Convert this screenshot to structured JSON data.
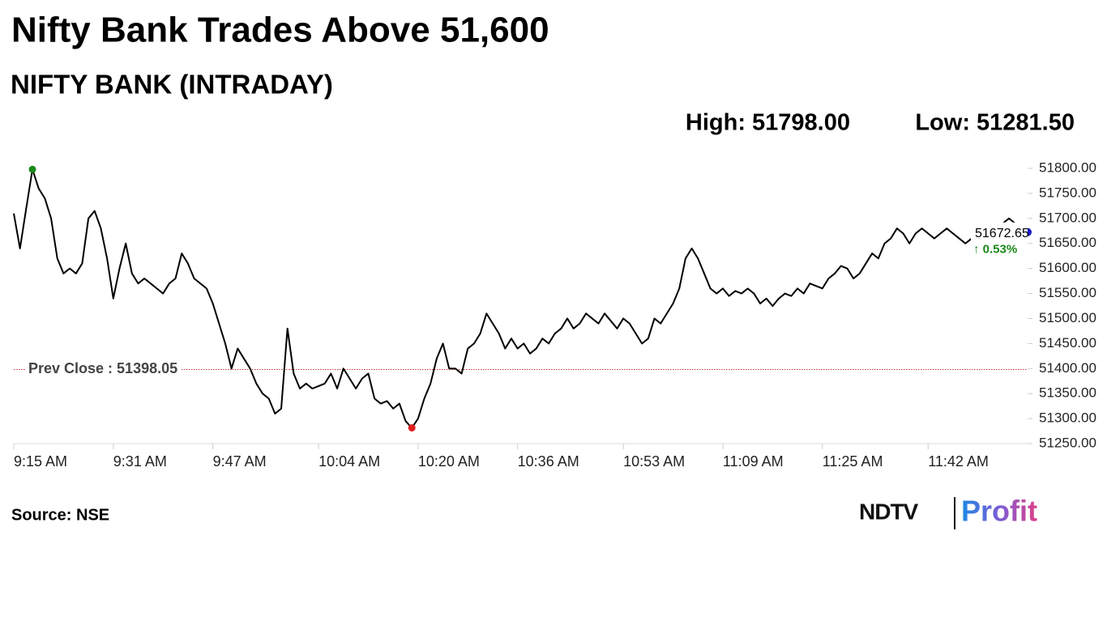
{
  "chart_data": {
    "type": "line",
    "title": "Nifty Bank Trades Above 51,600",
    "subtitle": "NIFTY BANK (INTRADAY)",
    "high_text": "High: 51798.00",
    "low_text": "Low: 51281.50",
    "prev_close": {
      "value": 51398.05,
      "label": "Prev Close : 51398.05"
    },
    "last_price": "51672.65",
    "last_change": "↑ 0.53%",
    "source": "Source: NSE",
    "brand": "NDTV",
    "brand_product": "Profit",
    "high_color": "#1a8a1a",
    "low_color": "#e02020",
    "last_color": "#1a1acc",
    "categories": [
      "9:15 AM",
      null,
      null,
      null,
      null,
      null,
      null,
      null,
      null,
      null,
      null,
      null,
      null,
      null,
      null,
      null,
      "9:31 AM",
      null,
      null,
      null,
      null,
      null,
      null,
      null,
      null,
      null,
      null,
      null,
      null,
      null,
      null,
      null,
      "9:47 AM",
      null,
      null,
      null,
      null,
      null,
      null,
      null,
      null,
      null,
      null,
      null,
      null,
      null,
      null,
      null,
      null,
      "10:04 AM",
      null,
      null,
      null,
      null,
      null,
      null,
      null,
      null,
      null,
      null,
      null,
      null,
      null,
      null,
      null,
      "10:20 AM",
      null,
      null,
      null,
      null,
      null,
      null,
      null,
      null,
      null,
      null,
      null,
      null,
      null,
      null,
      null,
      "10:36 AM",
      null,
      null,
      null,
      null,
      null,
      null,
      null,
      null,
      null,
      null,
      null,
      null,
      null,
      null,
      null,
      null,
      "10:53 AM",
      null,
      null,
      null,
      null,
      null,
      null,
      null,
      null,
      null,
      null,
      null,
      null,
      null,
      null,
      null,
      "11:09 AM",
      null,
      null,
      null,
      null,
      null,
      null,
      null,
      null,
      null,
      null,
      null,
      null,
      null,
      null,
      null,
      "11:25 AM",
      null,
      null,
      null,
      null,
      null,
      null,
      null,
      null,
      null,
      null,
      null,
      null,
      null,
      null,
      null,
      null,
      "11:42 AM",
      null,
      null,
      null,
      null,
      null,
      null,
      null,
      null,
      null,
      null,
      null,
      null,
      null,
      null,
      null,
      null
    ],
    "series": [
      {
        "color": "#000000",
        "values": [
          51710,
          51640,
          51720,
          51798,
          51760,
          51740,
          51700,
          51620,
          51590,
          51600,
          51590,
          51610,
          51700,
          51715,
          51680,
          51620,
          51540,
          51600,
          51650,
          51590,
          51570,
          51580,
          51570,
          51560,
          51550,
          51570,
          51580,
          51630,
          51610,
          51580,
          51570,
          51560,
          51530,
          51490,
          51450,
          51400,
          51440,
          51420,
          51400,
          51370,
          51350,
          51340,
          51310,
          51320,
          51480,
          51390,
          51360,
          51370,
          51360,
          51365,
          51370,
          51390,
          51360,
          51400,
          51380,
          51360,
          51380,
          51390,
          51340,
          51330,
          51335,
          51320,
          51330,
          51295,
          51281.5,
          51300,
          51340,
          51370,
          51420,
          51450,
          51400,
          51400,
          51390,
          51440,
          51450,
          51470,
          51510,
          51490,
          51470,
          51440,
          51460,
          51440,
          51450,
          51430,
          51440,
          51460,
          51450,
          51470,
          51480,
          51500,
          51480,
          51490,
          51510,
          51500,
          51490,
          51510,
          51495,
          51480,
          51500,
          51490,
          51470,
          51450,
          51460,
          51500,
          51490,
          51510,
          51530,
          51560,
          51620,
          51640,
          51620,
          51590,
          51560,
          51550,
          51560,
          51545,
          51555,
          51550,
          51560,
          51550,
          51530,
          51540,
          51525,
          51540,
          51550,
          51545,
          51560,
          51550,
          51570,
          51565,
          51560,
          51580,
          51590,
          51605,
          51600,
          51580,
          51590,
          51610,
          51630,
          51620,
          51650,
          51660,
          51680,
          51670,
          51650,
          51670,
          51680,
          51670,
          51660,
          51670,
          51680,
          51670,
          51660,
          51650,
          51660,
          51670,
          51675,
          51680,
          51670,
          51690,
          51700,
          51690,
          51675,
          51672.65
        ]
      }
    ],
    "ylim": [
      51250,
      51800
    ],
    "yticks": [
      {
        "value": 51800,
        "label": "51800.00"
      },
      {
        "value": 51750,
        "label": "51750.00"
      },
      {
        "value": 51700,
        "label": "51700.00"
      },
      {
        "value": 51650,
        "label": "51650.00"
      },
      {
        "value": 51600,
        "label": "51600.00"
      },
      {
        "value": 51550,
        "label": "51550.00"
      },
      {
        "value": 51500,
        "label": "51500.00"
      },
      {
        "value": 51450,
        "label": "51450.00"
      },
      {
        "value": 51400,
        "label": "51400.00"
      },
      {
        "value": 51350,
        "label": "51350.00"
      },
      {
        "value": 51300,
        "label": "51300.00"
      },
      {
        "value": 51250,
        "label": "51250.00"
      }
    ]
  }
}
